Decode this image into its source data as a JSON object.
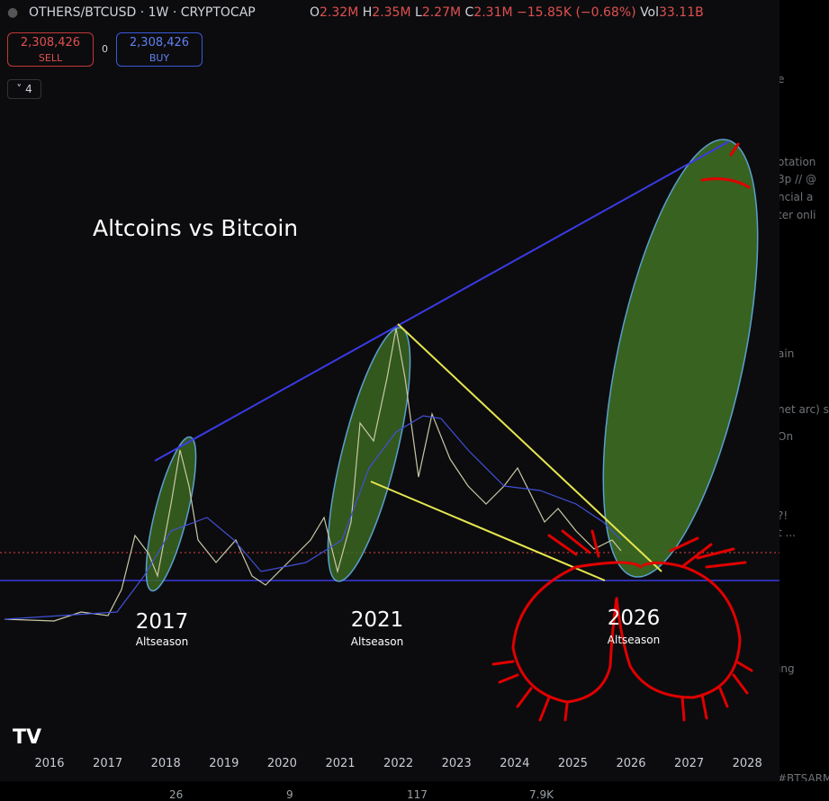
{
  "header": {
    "symbol": "OTHERS/BTCUSD · 1W · CRYPTOCAP",
    "open_label": "O",
    "open": "2.32M",
    "high_label": "H",
    "high": "2.35M",
    "low_label": "L",
    "low": "2.27M",
    "close_label": "C",
    "close": "2.31M",
    "change": "−15.85K (−0.68%)",
    "vol_label": "Vol",
    "vol": "33.11B"
  },
  "trade": {
    "sell_price": "2,308,426",
    "sell": "SELL",
    "spread": "0",
    "buy_price": "2,308,426",
    "buy": "BUY"
  },
  "indicators_count": "4",
  "annotations": {
    "title": "Altcoins vs Bitcoin",
    "labels": [
      {
        "year": "2017",
        "text": "Altseason"
      },
      {
        "year": "2021",
        "text": "Altseason"
      },
      {
        "year": "2026",
        "text": "Altseason"
      }
    ]
  },
  "x_axis": [
    "2016",
    "2017",
    "2018",
    "2019",
    "2020",
    "2021",
    "2022",
    "2023",
    "2024",
    "2025",
    "2026",
    "2027",
    "2028"
  ],
  "sidebar": [
    "e",
    "otation",
    "3p // @",
    "ncial a",
    "ter onli",
    "ain",
    "net arc) s",
    "On",
    "?!",
    "t ...",
    "ing",
    "#BTSARMY"
  ],
  "footer": [
    "26",
    "9",
    "117",
    "7.9K"
  ]
}
